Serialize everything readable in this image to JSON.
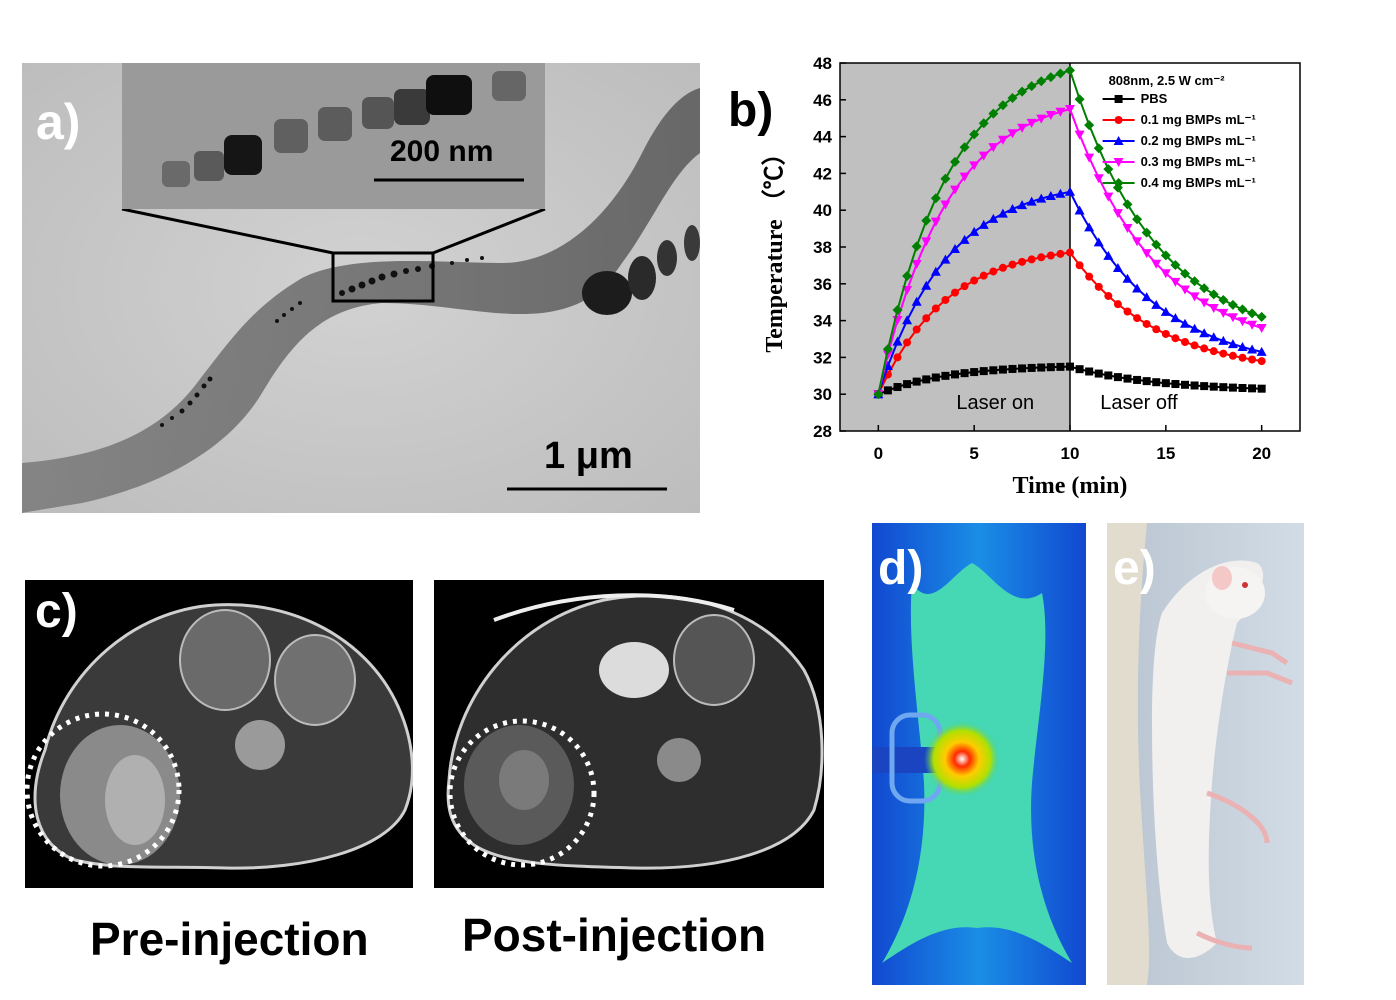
{
  "panel_a": {
    "label": "a)",
    "inset_scale": "200 nm",
    "main_scale": "1 μm"
  },
  "panel_b": {
    "label": "b)"
  },
  "panel_c": {
    "label": "c)",
    "pre_caption": "Pre-injection",
    "post_caption": "Post-injection"
  },
  "panel_d": {
    "label": "d)"
  },
  "panel_e": {
    "label": "e)"
  },
  "chart_data": {
    "type": "line",
    "xlabel": "Time (min)",
    "ylabel": "Temperature （℃）",
    "xlim": [
      -2,
      22
    ],
    "ylim": [
      28,
      48
    ],
    "xticks": [
      0,
      5,
      10,
      15,
      20
    ],
    "yticks": [
      28,
      30,
      32,
      34,
      36,
      38,
      40,
      42,
      44,
      46,
      48
    ],
    "legend_title": "808nm, 2.5 W cm⁻²",
    "legend_position": "top-right",
    "shaded_region": {
      "x": [
        -2,
        10
      ],
      "color": "#c0c0c0"
    },
    "vline": 10,
    "annotations": [
      "Laser on",
      "Laser off"
    ],
    "series": [
      {
        "name": "PBS",
        "color": "#000000",
        "marker": "square",
        "peak": 31.5,
        "end": 30.3
      },
      {
        "name": "0.1 mg BMPs mL⁻¹",
        "color": "#ff0000",
        "marker": "circle",
        "peak": 37.7,
        "end": 31.8
      },
      {
        "name": "0.2 mg BMPs mL⁻¹",
        "color": "#0000ff",
        "marker": "triangle-up",
        "peak": 41.0,
        "end": 32.3
      },
      {
        "name": "0.3 mg BMPs mL⁻¹",
        "color": "#ff00ff",
        "marker": "triangle-down",
        "peak": 45.5,
        "end": 33.6
      },
      {
        "name": "0.4 mg BMPs mL⁻¹",
        "color": "#008000",
        "marker": "diamond",
        "peak": 47.6,
        "end": 34.2
      }
    ],
    "start_value": 30.0,
    "x_step": 0.5
  }
}
